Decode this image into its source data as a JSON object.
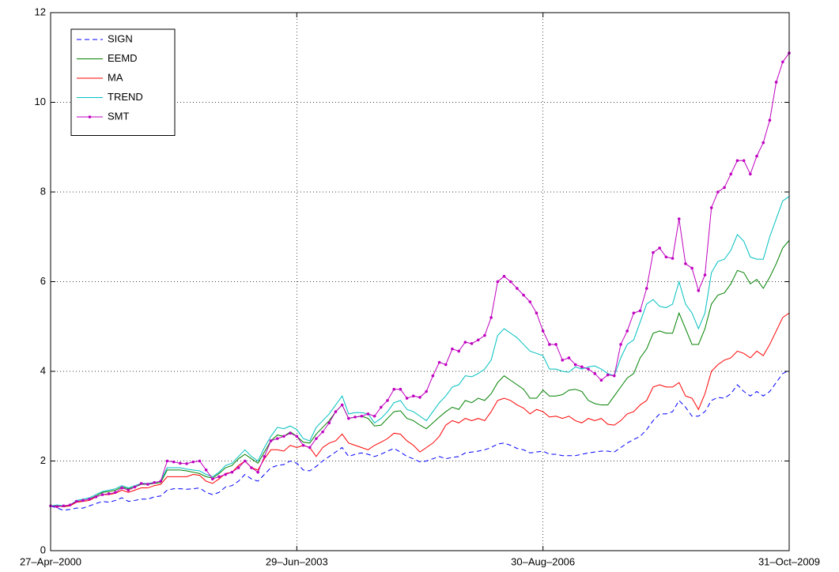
{
  "chart_data": {
    "type": "line",
    "categories": [
      "27–Apr–2000",
      null,
      null,
      null,
      null,
      null,
      null,
      null,
      null,
      null,
      null,
      null,
      null,
      null,
      null,
      null,
      null,
      null,
      null,
      null,
      null,
      null,
      null,
      null,
      null,
      null,
      null,
      null,
      null,
      null,
      null,
      null,
      null,
      null,
      null,
      null,
      null,
      null,
      "29–Jun–2003",
      null,
      null,
      null,
      null,
      null,
      null,
      null,
      null,
      null,
      null,
      null,
      null,
      null,
      null,
      null,
      null,
      null,
      null,
      null,
      null,
      null,
      null,
      null,
      null,
      null,
      null,
      null,
      null,
      null,
      null,
      null,
      null,
      null,
      null,
      null,
      null,
      null,
      "30–Aug–2006",
      null,
      null,
      null,
      null,
      null,
      null,
      null,
      null,
      null,
      null,
      null,
      null,
      null,
      null,
      null,
      null,
      null,
      null,
      null,
      null,
      null,
      null,
      null,
      null,
      null,
      null,
      null,
      null,
      null,
      null,
      null,
      null,
      null,
      null,
      null,
      null,
      null,
      "31–Oct–2009"
    ],
    "ylim": [
      0,
      12
    ],
    "yticks": [
      0,
      2,
      4,
      6,
      8,
      10,
      12
    ],
    "grid": true,
    "legend": "upper left",
    "series": [
      {
        "name": "SIGN",
        "color": "#0000ff",
        "linestyle": "dashed",
        "values": [
          1.0,
          0.95,
          0.9,
          0.92,
          0.95,
          0.95,
          1.0,
          1.05,
          1.1,
          1.08,
          1.12,
          1.18,
          1.1,
          1.12,
          1.15,
          1.15,
          1.2,
          1.22,
          1.35,
          1.38,
          1.38,
          1.37,
          1.38,
          1.4,
          1.3,
          1.25,
          1.3,
          1.42,
          1.45,
          1.55,
          1.7,
          1.6,
          1.55,
          1.7,
          1.85,
          1.9,
          1.92,
          2.0,
          1.95,
          1.8,
          1.78,
          1.88,
          2.0,
          2.1,
          2.2,
          2.3,
          2.1,
          2.15,
          2.18,
          2.15,
          2.1,
          2.15,
          2.22,
          2.28,
          2.2,
          2.1,
          2.05,
          1.98,
          2.0,
          2.05,
          2.1,
          2.05,
          2.08,
          2.1,
          2.18,
          2.2,
          2.22,
          2.25,
          2.3,
          2.38,
          2.4,
          2.35,
          2.28,
          2.25,
          2.18,
          2.2,
          2.22,
          2.15,
          2.15,
          2.12,
          2.12,
          2.12,
          2.15,
          2.18,
          2.2,
          2.22,
          2.22,
          2.2,
          2.3,
          2.4,
          2.48,
          2.55,
          2.7,
          2.9,
          3.05,
          3.05,
          3.1,
          3.35,
          3.2,
          3.0,
          3.0,
          3.1,
          3.35,
          3.42,
          3.4,
          3.5,
          3.7,
          3.55,
          3.45,
          3.55,
          3.45,
          3.55,
          3.75,
          3.95,
          4.02
        ]
      },
      {
        "name": "EEMD",
        "color": "#008000",
        "linestyle": "solid",
        "values": [
          1.0,
          1.0,
          0.98,
          1.0,
          1.1,
          1.12,
          1.15,
          1.22,
          1.3,
          1.32,
          1.35,
          1.42,
          1.38,
          1.42,
          1.48,
          1.48,
          1.5,
          1.52,
          1.8,
          1.8,
          1.8,
          1.78,
          1.75,
          1.72,
          1.65,
          1.62,
          1.72,
          1.85,
          1.9,
          2.05,
          2.15,
          2.05,
          1.95,
          2.2,
          2.45,
          2.58,
          2.55,
          2.65,
          2.55,
          2.42,
          2.4,
          2.6,
          2.75,
          2.9,
          3.1,
          3.25,
          2.95,
          2.98,
          3.0,
          2.95,
          2.78,
          2.8,
          2.95,
          3.1,
          3.12,
          2.95,
          2.9,
          2.8,
          2.72,
          2.85,
          2.98,
          3.1,
          3.2,
          3.15,
          3.35,
          3.3,
          3.4,
          3.35,
          3.5,
          3.75,
          3.9,
          3.8,
          3.7,
          3.6,
          3.4,
          3.4,
          3.58,
          3.45,
          3.45,
          3.48,
          3.58,
          3.6,
          3.55,
          3.35,
          3.28,
          3.25,
          3.25,
          3.45,
          3.65,
          3.85,
          3.95,
          4.3,
          4.5,
          4.85,
          4.9,
          4.85,
          4.85,
          5.3,
          4.95,
          4.6,
          4.6,
          4.95,
          5.5,
          5.7,
          5.75,
          5.95,
          6.25,
          6.2,
          5.95,
          6.05,
          5.85,
          6.1,
          6.4,
          6.75,
          6.92
        ]
      },
      {
        "name": "MA",
        "color": "#ff0000",
        "linestyle": "solid",
        "values": [
          1.0,
          1.0,
          0.98,
          1.0,
          1.08,
          1.1,
          1.12,
          1.2,
          1.25,
          1.25,
          1.28,
          1.35,
          1.3,
          1.35,
          1.4,
          1.4,
          1.45,
          1.48,
          1.65,
          1.65,
          1.65,
          1.65,
          1.7,
          1.68,
          1.55,
          1.5,
          1.6,
          1.72,
          1.75,
          1.9,
          2.0,
          1.85,
          1.8,
          2.05,
          2.25,
          2.25,
          2.22,
          2.35,
          2.3,
          2.35,
          2.3,
          2.1,
          2.3,
          2.4,
          2.45,
          2.6,
          2.4,
          2.35,
          2.3,
          2.25,
          2.35,
          2.42,
          2.5,
          2.62,
          2.6,
          2.45,
          2.35,
          2.2,
          2.3,
          2.4,
          2.55,
          2.8,
          2.9,
          2.85,
          2.95,
          2.9,
          2.95,
          2.9,
          3.1,
          3.35,
          3.4,
          3.35,
          3.25,
          3.18,
          3.05,
          3.15,
          3.1,
          2.98,
          3.0,
          2.95,
          3.0,
          2.9,
          2.85,
          2.95,
          2.9,
          2.95,
          2.82,
          2.8,
          2.9,
          3.05,
          3.1,
          3.25,
          3.35,
          3.65,
          3.7,
          3.65,
          3.65,
          3.75,
          3.45,
          3.4,
          3.15,
          3.5,
          4.0,
          4.15,
          4.25,
          4.3,
          4.45,
          4.4,
          4.3,
          4.45,
          4.35,
          4.6,
          4.9,
          5.2,
          5.3
        ]
      },
      {
        "name": "TREND",
        "color": "#00bfbf",
        "linestyle": "solid",
        "values": [
          1.0,
          1.02,
          1.0,
          1.02,
          1.12,
          1.15,
          1.18,
          1.25,
          1.32,
          1.35,
          1.38,
          1.45,
          1.4,
          1.45,
          1.5,
          1.5,
          1.52,
          1.55,
          1.85,
          1.85,
          1.85,
          1.82,
          1.8,
          1.78,
          1.7,
          1.65,
          1.75,
          1.9,
          1.95,
          2.1,
          2.25,
          2.1,
          2.0,
          2.3,
          2.55,
          2.75,
          2.72,
          2.78,
          2.7,
          2.5,
          2.45,
          2.75,
          2.9,
          3.05,
          3.25,
          3.45,
          3.05,
          3.08,
          3.08,
          3.05,
          2.85,
          2.95,
          3.1,
          3.3,
          3.35,
          3.15,
          3.1,
          3.0,
          2.9,
          3.1,
          3.3,
          3.45,
          3.65,
          3.7,
          3.9,
          3.88,
          3.95,
          4.05,
          4.25,
          4.8,
          4.95,
          4.85,
          4.75,
          4.6,
          4.45,
          4.4,
          4.35,
          4.05,
          4.05,
          4.0,
          3.98,
          4.1,
          4.05,
          4.1,
          4.12,
          4.05,
          3.95,
          3.9,
          4.3,
          4.6,
          4.7,
          5.1,
          5.5,
          5.6,
          5.45,
          5.42,
          5.5,
          6.0,
          5.5,
          5.3,
          4.95,
          5.3,
          6.2,
          6.45,
          6.5,
          6.7,
          7.05,
          6.9,
          6.55,
          6.5,
          6.5,
          7.0,
          7.4,
          7.8,
          7.9
        ]
      },
      {
        "name": "SMT",
        "color": "#bf00bf",
        "linestyle": "solid",
        "marker": "dot",
        "values": [
          1.0,
          0.98,
          1.0,
          1.02,
          1.1,
          1.12,
          1.15,
          1.2,
          1.25,
          1.27,
          1.3,
          1.4,
          1.35,
          1.42,
          1.5,
          1.48,
          1.52,
          1.55,
          2.0,
          1.98,
          1.95,
          1.94,
          1.98,
          2.0,
          1.8,
          1.6,
          1.65,
          1.7,
          1.75,
          1.85,
          2.0,
          1.85,
          1.75,
          2.1,
          2.45,
          2.5,
          2.55,
          2.62,
          2.55,
          2.35,
          2.3,
          2.5,
          2.65,
          2.85,
          3.1,
          3.25,
          2.95,
          2.98,
          3.0,
          3.05,
          3.0,
          3.2,
          3.35,
          3.6,
          3.6,
          3.4,
          3.45,
          3.42,
          3.55,
          3.9,
          4.2,
          4.15,
          4.5,
          4.45,
          4.65,
          4.62,
          4.7,
          4.8,
          5.2,
          6.0,
          6.12,
          6.0,
          5.85,
          5.7,
          5.55,
          5.3,
          4.9,
          4.6,
          4.6,
          4.25,
          4.3,
          4.15,
          4.1,
          4.05,
          3.95,
          3.8,
          3.92,
          3.9,
          4.6,
          4.9,
          5.3,
          5.35,
          5.85,
          6.65,
          6.75,
          6.55,
          6.52,
          7.4,
          6.4,
          6.3,
          5.8,
          6.15,
          7.65,
          8.0,
          8.1,
          8.4,
          8.7,
          8.7,
          8.4,
          8.8,
          9.1,
          9.6,
          10.45,
          10.9,
          11.1
        ]
      }
    ]
  }
}
